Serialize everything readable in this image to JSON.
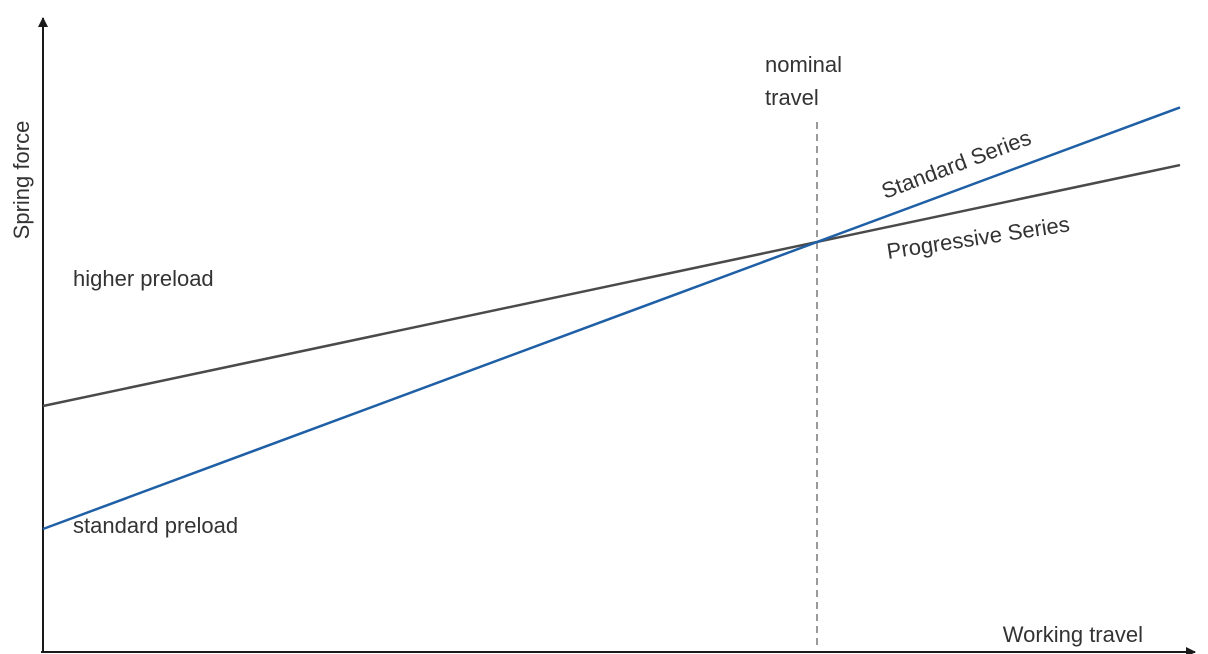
{
  "chart_data": {
    "type": "line",
    "xlabel": "Working travel",
    "ylabel": "Spring force",
    "x": [
      0,
      1
    ],
    "series": [
      {
        "name": "Standard Series",
        "color": "#1f5fa6",
        "values": [
          0.3,
          1.0
        ],
        "start_label": "standard preload"
      },
      {
        "name": "Progressive Series",
        "color": "#4a4a4a",
        "values": [
          0.6,
          1.0
        ],
        "start_label": "higher preload"
      }
    ],
    "reference_line": {
      "x": 1,
      "label_line1": "nominal",
      "label_line2": "travel"
    },
    "axis_ticks": false,
    "grid": false,
    "legend": "none"
  }
}
